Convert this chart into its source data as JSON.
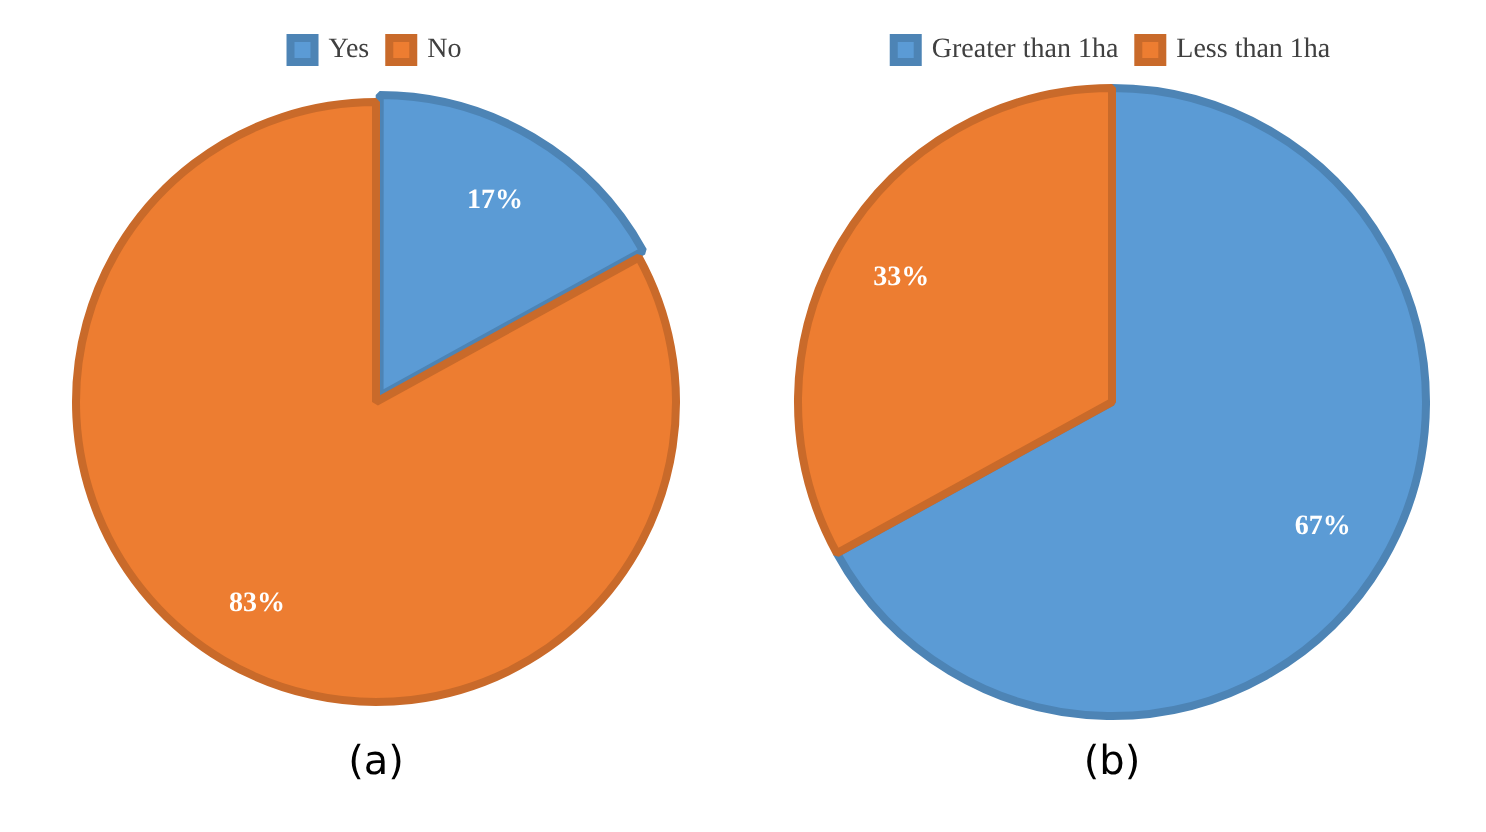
{
  "chart_data": [
    {
      "type": "pie",
      "title": "(a)",
      "categories": [
        "Yes",
        "No"
      ],
      "values": [
        17,
        83
      ],
      "colors": [
        "#5b9bd5",
        "#ed7d31"
      ],
      "value_labels": [
        "17%",
        "83%"
      ],
      "legend": "top"
    },
    {
      "type": "pie",
      "title": "(b)",
      "categories": [
        "Greater than 1ha",
        "Less than 1ha"
      ],
      "values": [
        67,
        33
      ],
      "colors": [
        "#5b9bd5",
        "#ed7d31"
      ],
      "value_labels": [
        "67%",
        "33%"
      ],
      "legend": "top"
    }
  ]
}
